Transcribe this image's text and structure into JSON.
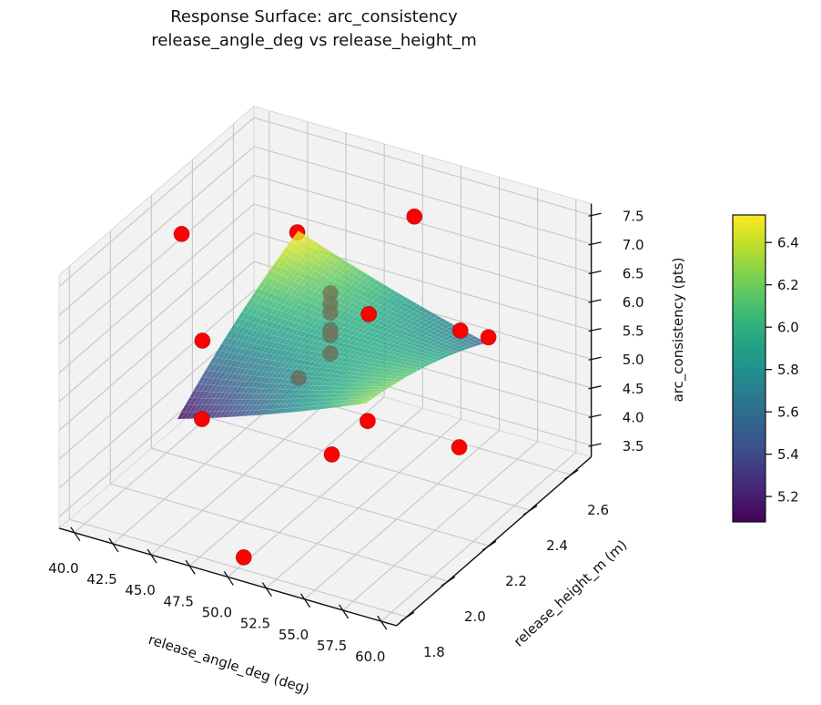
{
  "title": {
    "line1": "Response Surface: arc_consistency",
    "line2": "release_angle_deg vs release_height_m"
  },
  "chart_data": {
    "type": "3d-surface-with-scatter",
    "colormap": "viridis",
    "view": {
      "azim_deg": -60,
      "elev_deg": 30
    },
    "x_axis": {
      "label": "release_angle_deg (deg)",
      "tick_labels": [
        "40.0",
        "42.5",
        "45.0",
        "47.5",
        "50.0",
        "52.5",
        "55.0",
        "57.5",
        "60.0"
      ],
      "tick_values": [
        40,
        42.5,
        45,
        47.5,
        50,
        52.5,
        55,
        57.5,
        60
      ],
      "range": [
        39,
        61
      ]
    },
    "y_axis": {
      "label": "release_height_m (m)",
      "tick_labels": [
        "1.8",
        "2.0",
        "2.2",
        "2.4",
        "2.6"
      ],
      "tick_values": [
        1.8,
        2.0,
        2.2,
        2.4,
        2.6
      ],
      "range": [
        1.75,
        2.7
      ]
    },
    "z_axis": {
      "label": "arc_consistency (pts)",
      "tick_labels": [
        "3.5",
        "4.0",
        "4.5",
        "5.0",
        "5.5",
        "6.0",
        "6.5",
        "7.0",
        "7.5"
      ],
      "tick_values": [
        3.5,
        4.0,
        4.5,
        5.0,
        5.5,
        6.0,
        6.5,
        7.0,
        7.5
      ],
      "range": [
        3.3,
        7.7
      ]
    },
    "surface": {
      "x_domain": [
        44.3,
        56.6
      ],
      "y_domain": [
        1.93,
        2.52
      ],
      "z_color_range": [
        5.05,
        6.5
      ],
      "model": {
        "description": "fitted quadratic response surface: z = b0 + b1*u + b2*v + b11*u^2 + b22*v^2 + b12*u*v, where u,v are x,y rescaled to [-1,1] over the domain",
        "b0": 5.9,
        "b1": 0.055,
        "b2": 0.17,
        "b11": 0.05,
        "b22": -0.12,
        "b12": -0.555
      }
    },
    "scatter": {
      "color": "#ff0000",
      "marker_diameter_px": 17,
      "points_front": [
        [
          40.3,
          2.25,
          6.97
        ],
        [
          50.8,
          2.6,
          7.0
        ],
        [
          50.5,
          2.4,
          5.9
        ],
        [
          53.8,
          2.6,
          5.25
        ],
        [
          56.3,
          2.55,
          5.48
        ],
        [
          45.0,
          2.0,
          6.25
        ],
        [
          44.3,
          2.05,
          4.68
        ],
        [
          53.1,
          2.2,
          4.86
        ],
        [
          52.1,
          2.1,
          4.51
        ],
        [
          56.4,
          2.4,
          4.04
        ],
        [
          49.7,
          1.85,
          3.31
        ]
      ],
      "points_occluded": [
        [
          50.0,
          2.25,
          6.69
        ],
        [
          50.0,
          2.25,
          6.5
        ],
        [
          50.0,
          2.25,
          6.35
        ],
        [
          50.0,
          2.25,
          6.05
        ],
        [
          50.0,
          2.25,
          5.96
        ],
        [
          50.0,
          2.25,
          5.64
        ],
        [
          48.6,
          2.2,
          5.26
        ]
      ],
      "peek_point": [
        44.5,
        2.5,
        6.55
      ]
    },
    "colorbar": {
      "range": [
        5.08,
        6.53
      ],
      "tick_labels": [
        "5.2",
        "5.4",
        "5.6",
        "5.8",
        "6.0",
        "6.2",
        "6.4"
      ],
      "tick_values": [
        5.2,
        5.4,
        5.6,
        5.8,
        6.0,
        6.2,
        6.4
      ]
    }
  }
}
